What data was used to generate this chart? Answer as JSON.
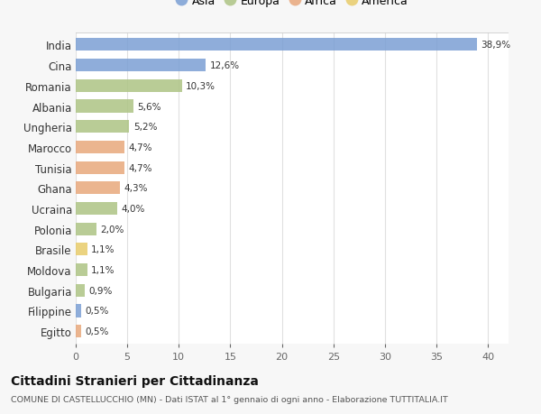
{
  "categories": [
    "India",
    "Cina",
    "Romania",
    "Albania",
    "Ungheria",
    "Marocco",
    "Tunisia",
    "Ghana",
    "Ucraina",
    "Polonia",
    "Brasile",
    "Moldova",
    "Bulgaria",
    "Filippine",
    "Egitto"
  ],
  "values": [
    38.9,
    12.6,
    10.3,
    5.6,
    5.2,
    4.7,
    4.7,
    4.3,
    4.0,
    2.0,
    1.1,
    1.1,
    0.9,
    0.5,
    0.5
  ],
  "labels": [
    "38,9%",
    "12,6%",
    "10,3%",
    "5,6%",
    "5,2%",
    "4,7%",
    "4,7%",
    "4,3%",
    "4,0%",
    "2,0%",
    "1,1%",
    "1,1%",
    "0,9%",
    "0,5%",
    "0,5%"
  ],
  "continents": [
    "Asia",
    "Asia",
    "Europa",
    "Europa",
    "Europa",
    "Africa",
    "Africa",
    "Africa",
    "Europa",
    "Europa",
    "America",
    "Europa",
    "Europa",
    "Asia",
    "Africa"
  ],
  "continent_colors": {
    "Asia": "#7b9fd4",
    "Europa": "#adc484",
    "Africa": "#e8a87c",
    "America": "#e8cc6a"
  },
  "legend_order": [
    "Asia",
    "Europa",
    "Africa",
    "America"
  ],
  "title": "Cittadini Stranieri per Cittadinanza",
  "subtitle": "COMUNE DI CASTELLUCCHIO (MN) - Dati ISTAT al 1° gennaio di ogni anno - Elaborazione TUTTITALIA.IT",
  "xlim": [
    0,
    42
  ],
  "xticks": [
    0,
    5,
    10,
    15,
    20,
    25,
    30,
    35,
    40
  ],
  "background_color": "#f7f7f7",
  "plot_background": "#ffffff",
  "grid_color": "#e0e0e0"
}
